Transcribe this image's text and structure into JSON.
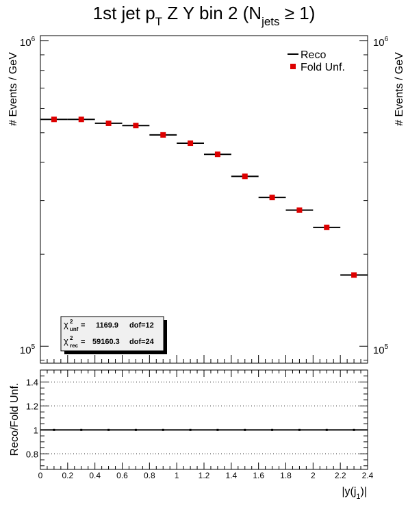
{
  "title": {
    "main": "1st jet p",
    "main_sub": "T",
    "rest": " Z Y bin 2 (N",
    "rest_sub": "jets",
    "end": " ≥ 1)"
  },
  "chart_data": [
    {
      "type": "scatter",
      "panel": "top",
      "ylabel": "# Events / GeV",
      "y_log": true,
      "ylim": [
        88000,
        1040000
      ],
      "y_major_tick_labels": [
        {
          "base": "10",
          "exp": "5",
          "value": 100000
        },
        {
          "base": "10",
          "exp": "6",
          "value": 1000000
        }
      ],
      "xlim": [
        0,
        2.4
      ],
      "x": [
        0.1,
        0.3,
        0.5,
        0.7,
        0.9,
        1.1,
        1.3,
        1.5,
        1.7,
        1.9,
        2.1,
        2.3
      ],
      "x_halfwidth": 0.1,
      "legend": {
        "position": "top-right",
        "entries": [
          {
            "label": "Reco",
            "marker": "line",
            "color": "#000000"
          },
          {
            "label": "Fold Unf.",
            "marker": "square",
            "color": "#dd0000"
          }
        ]
      },
      "series": [
        {
          "name": "Reco",
          "style": "horizontal-bar",
          "color": "#000000",
          "values": [
            553000,
            553000,
            537000,
            528000,
            492000,
            462000,
            425000,
            360000,
            307000,
            279000,
            245000,
            171000
          ]
        },
        {
          "name": "Fold Unf.",
          "style": "square-marker",
          "color": "#dd0000",
          "values": [
            553000,
            553000,
            537000,
            528000,
            492000,
            462000,
            425000,
            360000,
            307000,
            279000,
            245000,
            171000
          ]
        }
      ],
      "stats_box": {
        "rows": [
          {
            "sym": "χ",
            "sup": "2",
            "sub": "unf",
            "value": "1169.9",
            "dof": "dof=12"
          },
          {
            "sym": "χ",
            "sup": "2",
            "sub": "rec",
            "value": "59160.3",
            "dof": "dof=24"
          }
        ]
      }
    },
    {
      "type": "scatter",
      "panel": "bottom",
      "ylabel": "Reco/Fold Unf.",
      "xlabel_main": "|y(j",
      "xlabel_sub": "1",
      "xlabel_end": ")|",
      "xlim": [
        0,
        2.4
      ],
      "ylim": [
        0.67,
        1.5
      ],
      "x_ticks": [
        "0",
        "0.2",
        "0.4",
        "0.6",
        "0.8",
        "1",
        "1.2",
        "1.4",
        "1.6",
        "1.8",
        "2",
        "2.2",
        "2.4"
      ],
      "y_ticks": [
        "0.8",
        "1",
        "1.2",
        "1.4"
      ],
      "grid": "dotted horizontal at 0.8, 1.2, 1.4",
      "x": [
        0.1,
        0.3,
        0.5,
        0.7,
        0.9,
        1.1,
        1.3,
        1.5,
        1.7,
        1.9,
        2.1,
        2.3
      ],
      "series": [
        {
          "name": "Reco/Fold Unf.",
          "color": "#000000",
          "values": [
            1,
            1,
            1,
            1,
            1,
            1,
            1,
            1,
            1,
            1,
            1,
            1
          ]
        }
      ]
    }
  ]
}
